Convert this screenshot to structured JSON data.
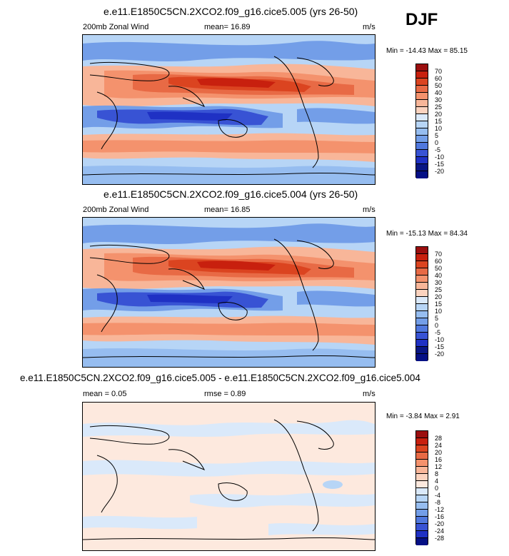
{
  "season": "DJF",
  "panels": [
    {
      "title": "e.e11.E1850C5CN.2XCO2.f09_g16.cice5.005 (yrs 26-50)",
      "variable": "200mb Zonal Wind",
      "stat": "mean=  16.89",
      "units": "m/s",
      "minmax": "Min = -14.43 Max =  85.15",
      "levels": [
        "70",
        "60",
        "50",
        "40",
        "30",
        "25",
        "20",
        "15",
        "10",
        "5",
        "0",
        "-5",
        "-10",
        "-15",
        "-20"
      ],
      "colors": [
        "#9b0f0f",
        "#c8200e",
        "#db4420",
        "#e86a45",
        "#f4926d",
        "#f8b699",
        "#fbd3bf",
        "#dae9fa",
        "#b7d5f6",
        "#96bdf0",
        "#739ee8",
        "#5078de",
        "#3853d4",
        "#1f31c4",
        "#091684",
        "#051085"
      ]
    },
    {
      "title": "e.e11.E1850C5CN.2XCO2.f09_g16.cice5.004 (yrs 26-50)",
      "variable": "200mb Zonal Wind",
      "stat": "mean=  16.85",
      "units": "m/s",
      "minmax": "Min = -15.13 Max =  84.34",
      "levels": [
        "70",
        "60",
        "50",
        "40",
        "30",
        "25",
        "20",
        "15",
        "10",
        "5",
        "0",
        "-5",
        "-10",
        "-15",
        "-20"
      ],
      "colors": [
        "#9b0f0f",
        "#c8200e",
        "#db4420",
        "#e86a45",
        "#f4926d",
        "#f8b699",
        "#fbd3bf",
        "#dae9fa",
        "#b7d5f6",
        "#96bdf0",
        "#739ee8",
        "#5078de",
        "#3853d4",
        "#1f31c4",
        "#091684",
        "#051085"
      ]
    },
    {
      "title": "e.e11.E1850C5CN.2XCO2.f09_g16.cice5.005 - e.e11.E1850C5CN.2XCO2.f09_g16.cice5.004",
      "stat_left": "mean =  0.05",
      "stat": "rmse =  0.89",
      "units": "m/s",
      "minmax": "Min =  -3.84 Max =   2.91",
      "levels": [
        "28",
        "24",
        "20",
        "16",
        "12",
        "8",
        "4",
        "0",
        "-4",
        "-8",
        "-12",
        "-16",
        "-20",
        "-24",
        "-28"
      ],
      "colors": [
        "#9b0f0f",
        "#c8200e",
        "#db4420",
        "#e86a45",
        "#f4926d",
        "#f8b699",
        "#fbd3bf",
        "#fde9de",
        "#dae9fa",
        "#b7d5f6",
        "#96bdf0",
        "#739ee8",
        "#5078de",
        "#3853d4",
        "#1f31c4",
        "#051085"
      ]
    }
  ]
}
